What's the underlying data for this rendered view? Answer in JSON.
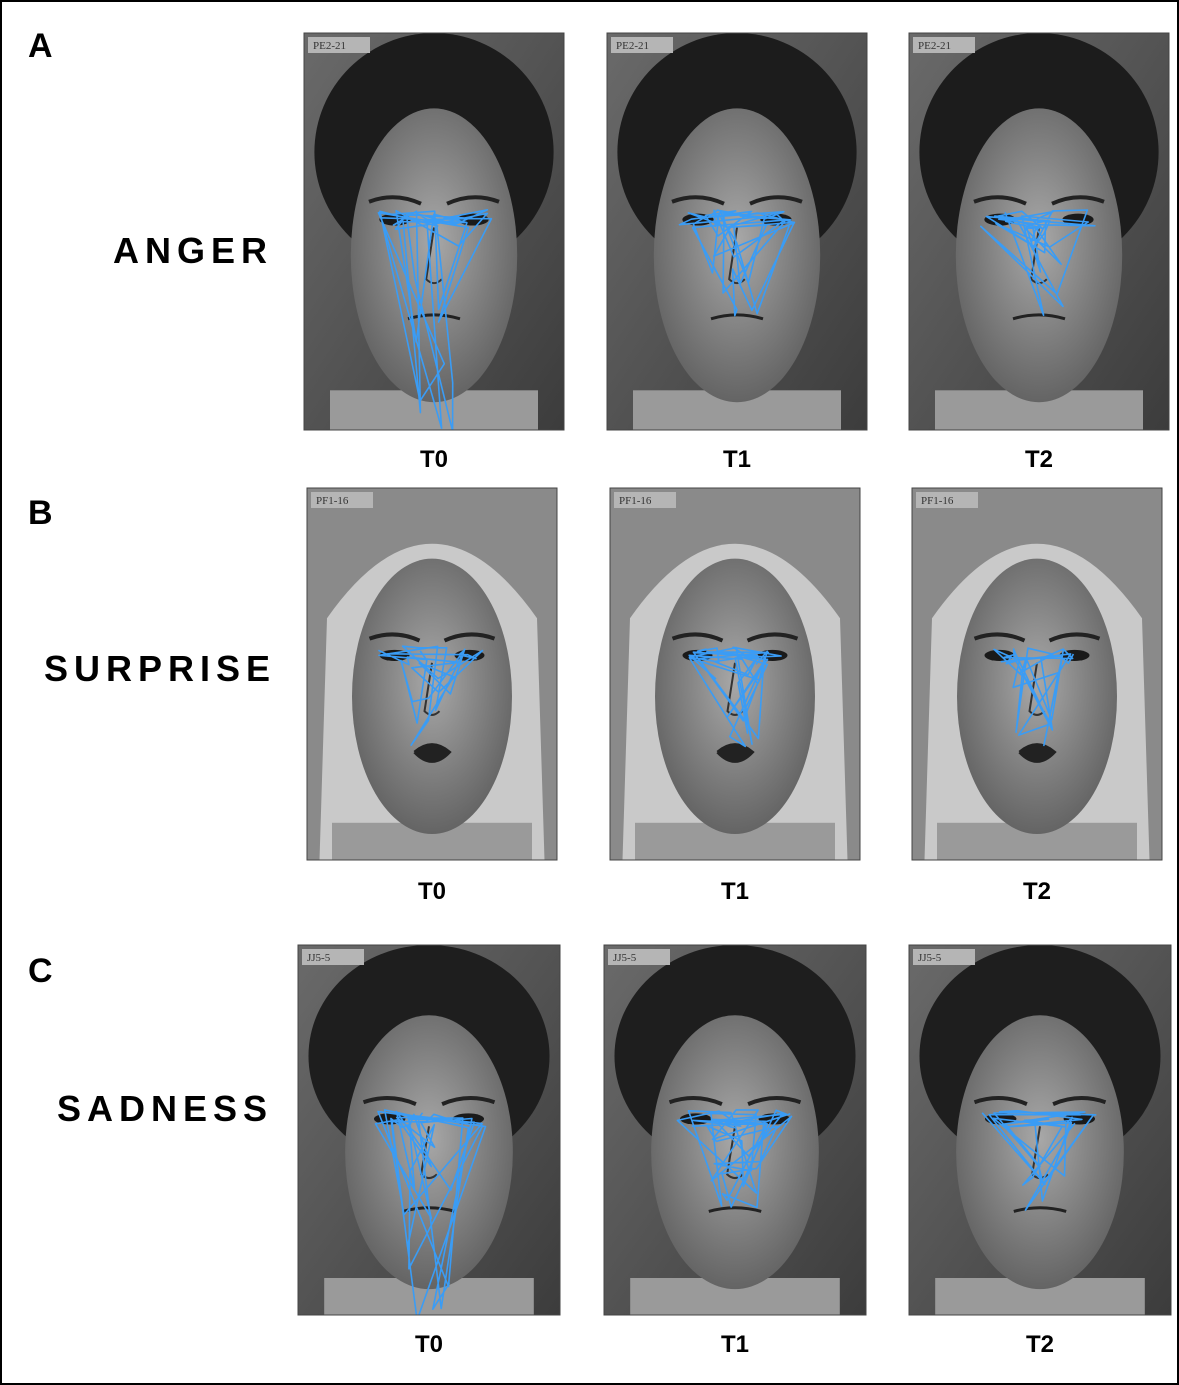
{
  "panels": [
    {
      "letter": "A",
      "emotion": "ANGER",
      "images": [
        {
          "stimulus_id": "PE2-21",
          "time": "T0"
        },
        {
          "stimulus_id": "PE2-21",
          "time": "T1"
        },
        {
          "stimulus_id": "PE2-21",
          "time": "T2"
        }
      ]
    },
    {
      "letter": "B",
      "emotion": "SURPRISE",
      "images": [
        {
          "stimulus_id": "PF1-16",
          "time": "T0"
        },
        {
          "stimulus_id": "PF1-16",
          "time": "T1"
        },
        {
          "stimulus_id": "PF1-16",
          "time": "T2"
        }
      ]
    },
    {
      "letter": "C",
      "emotion": "SADNESS",
      "images": [
        {
          "stimulus_id": "JJ5-5",
          "time": "T0"
        },
        {
          "stimulus_id": "JJ5-5",
          "time": "T1"
        },
        {
          "stimulus_id": "JJ5-5",
          "time": "T2"
        }
      ]
    }
  ]
}
